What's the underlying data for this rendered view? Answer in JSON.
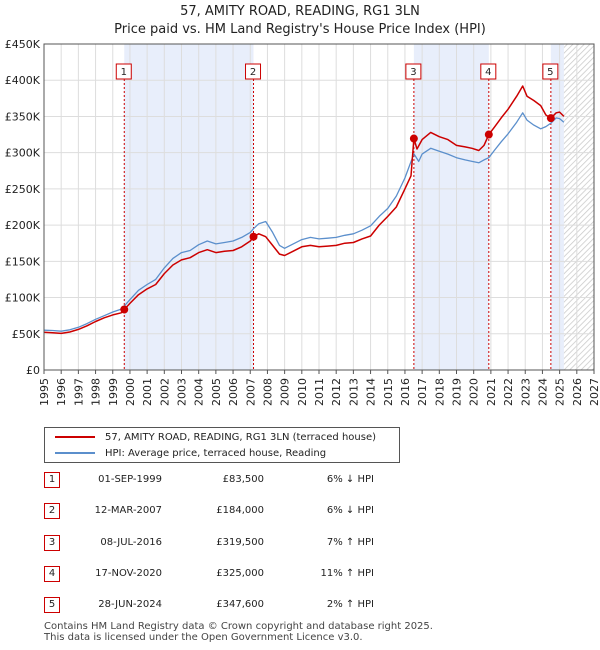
{
  "title_line1": "57, AMITY ROAD, READING, RG1 3LN",
  "title_line2": "Price paid vs. HM Land Registry's House Price Index (HPI)",
  "chart_data": {
    "type": "line",
    "x_range": [
      1995,
      2027
    ],
    "ylim": [
      0,
      450000
    ],
    "y_ticks": [
      {
        "value": 0,
        "label": "£0"
      },
      {
        "value": 50000,
        "label": "£50K"
      },
      {
        "value": 100000,
        "label": "£100K"
      },
      {
        "value": 150000,
        "label": "£150K"
      },
      {
        "value": 200000,
        "label": "£200K"
      },
      {
        "value": 250000,
        "label": "£250K"
      },
      {
        "value": 300000,
        "label": "£300K"
      },
      {
        "value": 350000,
        "label": "£350K"
      },
      {
        "value": 400000,
        "label": "£400K"
      },
      {
        "value": 450000,
        "label": "£450K"
      }
    ],
    "x_ticks": [
      "1995",
      "1996",
      "1997",
      "1998",
      "1999",
      "2000",
      "2001",
      "2002",
      "2003",
      "2004",
      "2005",
      "2006",
      "2007",
      "2008",
      "2009",
      "2010",
      "2011",
      "2012",
      "2013",
      "2014",
      "2015",
      "2016",
      "2017",
      "2018",
      "2019",
      "2020",
      "2021",
      "2022",
      "2023",
      "2024",
      "2025",
      "2026",
      "2027"
    ],
    "grid": true,
    "forecast_from": 2025.25,
    "shaded_periods": [
      [
        1999.67,
        2007.19
      ],
      [
        2016.52,
        2020.88
      ],
      [
        2024.49,
        2025.25
      ]
    ],
    "series": [
      {
        "name": "57, AMITY ROAD, READING, RG1 3LN (terraced house)",
        "color": "#cc0000",
        "points": [
          [
            1995.0,
            52000
          ],
          [
            1995.5,
            51500
          ],
          [
            1996.0,
            50500
          ],
          [
            1996.5,
            52500
          ],
          [
            1997.0,
            56000
          ],
          [
            1997.5,
            61000
          ],
          [
            1998.0,
            67000
          ],
          [
            1998.5,
            72000
          ],
          [
            1999.0,
            76000
          ],
          [
            1999.5,
            79000
          ],
          [
            1999.67,
            83500
          ],
          [
            2000.0,
            92000
          ],
          [
            2000.5,
            104000
          ],
          [
            2001.0,
            112000
          ],
          [
            2001.5,
            118000
          ],
          [
            2002.0,
            133000
          ],
          [
            2002.5,
            145000
          ],
          [
            2003.0,
            152000
          ],
          [
            2003.5,
            155000
          ],
          [
            2004.0,
            162000
          ],
          [
            2004.5,
            166000
          ],
          [
            2005.0,
            162000
          ],
          [
            2005.5,
            164000
          ],
          [
            2006.0,
            165000
          ],
          [
            2006.5,
            170000
          ],
          [
            2007.0,
            178000
          ],
          [
            2007.19,
            184000
          ],
          [
            2007.5,
            188000
          ],
          [
            2007.9,
            184000
          ],
          [
            2008.3,
            172000
          ],
          [
            2008.7,
            160000
          ],
          [
            2009.0,
            158000
          ],
          [
            2009.5,
            164000
          ],
          [
            2010.0,
            170000
          ],
          [
            2010.5,
            172000
          ],
          [
            2011.0,
            170000
          ],
          [
            2011.5,
            171000
          ],
          [
            2012.0,
            172000
          ],
          [
            2012.5,
            175000
          ],
          [
            2013.0,
            176000
          ],
          [
            2013.5,
            181000
          ],
          [
            2014.0,
            185000
          ],
          [
            2014.5,
            200000
          ],
          [
            2015.0,
            212000
          ],
          [
            2015.5,
            225000
          ],
          [
            2016.0,
            250000
          ],
          [
            2016.35,
            268000
          ],
          [
            2016.52,
            319500
          ],
          [
            2016.7,
            305000
          ],
          [
            2017.0,
            318000
          ],
          [
            2017.5,
            328000
          ],
          [
            2018.0,
            322000
          ],
          [
            2018.5,
            318000
          ],
          [
            2019.0,
            310000
          ],
          [
            2019.5,
            308000
          ],
          [
            2019.9,
            306000
          ],
          [
            2020.3,
            303000
          ],
          [
            2020.6,
            310000
          ],
          [
            2020.88,
            325000
          ],
          [
            2021.2,
            335000
          ],
          [
            2021.6,
            348000
          ],
          [
            2022.0,
            360000
          ],
          [
            2022.5,
            378000
          ],
          [
            2022.85,
            392000
          ],
          [
            2023.1,
            378000
          ],
          [
            2023.5,
            372000
          ],
          [
            2023.9,
            365000
          ],
          [
            2024.2,
            352000
          ],
          [
            2024.49,
            347600
          ],
          [
            2024.8,
            355000
          ],
          [
            2025.0,
            356000
          ],
          [
            2025.25,
            350000
          ]
        ]
      },
      {
        "name": "HPI: Average price, terraced house, Reading",
        "color": "#5b8fcc",
        "points": [
          [
            1995.0,
            55000
          ],
          [
            1995.5,
            54500
          ],
          [
            1996.0,
            53500
          ],
          [
            1996.5,
            55500
          ],
          [
            1997.0,
            59000
          ],
          [
            1997.5,
            64000
          ],
          [
            1998.0,
            70000
          ],
          [
            1998.5,
            75000
          ],
          [
            1999.0,
            80000
          ],
          [
            1999.5,
            84000
          ],
          [
            1999.67,
            88500
          ],
          [
            2000.0,
            97000
          ],
          [
            2000.5,
            110000
          ],
          [
            2001.0,
            118000
          ],
          [
            2001.5,
            125000
          ],
          [
            2002.0,
            141000
          ],
          [
            2002.5,
            154000
          ],
          [
            2003.0,
            162000
          ],
          [
            2003.5,
            165000
          ],
          [
            2004.0,
            173000
          ],
          [
            2004.5,
            178000
          ],
          [
            2005.0,
            174000
          ],
          [
            2005.5,
            176000
          ],
          [
            2006.0,
            178000
          ],
          [
            2006.5,
            183000
          ],
          [
            2007.0,
            190000
          ],
          [
            2007.19,
            195000
          ],
          [
            2007.5,
            202000
          ],
          [
            2007.9,
            205000
          ],
          [
            2008.3,
            190000
          ],
          [
            2008.7,
            172000
          ],
          [
            2009.0,
            168000
          ],
          [
            2009.5,
            174000
          ],
          [
            2010.0,
            180000
          ],
          [
            2010.5,
            183000
          ],
          [
            2011.0,
            181000
          ],
          [
            2011.5,
            182000
          ],
          [
            2012.0,
            183000
          ],
          [
            2012.5,
            186000
          ],
          [
            2013.0,
            188000
          ],
          [
            2013.5,
            193000
          ],
          [
            2014.0,
            199000
          ],
          [
            2014.5,
            212000
          ],
          [
            2015.0,
            223000
          ],
          [
            2015.5,
            240000
          ],
          [
            2016.0,
            265000
          ],
          [
            2016.52,
            298500
          ],
          [
            2016.8,
            288000
          ],
          [
            2017.0,
            298000
          ],
          [
            2017.5,
            306000
          ],
          [
            2018.0,
            302000
          ],
          [
            2018.5,
            298000
          ],
          [
            2019.0,
            293000
          ],
          [
            2019.5,
            290000
          ],
          [
            2019.9,
            288000
          ],
          [
            2020.3,
            286000
          ],
          [
            2020.6,
            290000
          ],
          [
            2020.88,
            293000
          ],
          [
            2021.2,
            303000
          ],
          [
            2021.6,
            315000
          ],
          [
            2022.0,
            326000
          ],
          [
            2022.5,
            342000
          ],
          [
            2022.85,
            355000
          ],
          [
            2023.1,
            345000
          ],
          [
            2023.5,
            338000
          ],
          [
            2023.9,
            333000
          ],
          [
            2024.2,
            336000
          ],
          [
            2024.49,
            340800
          ],
          [
            2024.8,
            348000
          ],
          [
            2025.0,
            347000
          ],
          [
            2025.25,
            342000
          ]
        ]
      }
    ],
    "sales": [
      {
        "num": "1",
        "x": 1999.67,
        "y": 83500
      },
      {
        "num": "2",
        "x": 2007.19,
        "y": 184000
      },
      {
        "num": "3",
        "x": 2016.52,
        "y": 319500
      },
      {
        "num": "4",
        "x": 2020.88,
        "y": 325000
      },
      {
        "num": "5",
        "x": 2024.49,
        "y": 347600
      }
    ]
  },
  "legend": {
    "property_label": "57, AMITY ROAD, READING, RG1 3LN (terraced house)",
    "hpi_label": "HPI: Average price, terraced house, Reading"
  },
  "transactions": [
    {
      "num": "1",
      "date": "01-SEP-1999",
      "price": "£83,500",
      "hpi": "6% ↓ HPI"
    },
    {
      "num": "2",
      "date": "12-MAR-2007",
      "price": "£184,000",
      "hpi": "6% ↓ HPI"
    },
    {
      "num": "3",
      "date": "08-JUL-2016",
      "price": "£319,500",
      "hpi": "7% ↑ HPI"
    },
    {
      "num": "4",
      "date": "17-NOV-2020",
      "price": "£325,000",
      "hpi": "11% ↑ HPI"
    },
    {
      "num": "5",
      "date": "28-JUN-2024",
      "price": "£347,600",
      "hpi": "2% ↑ HPI"
    }
  ],
  "footer": {
    "line1": "Contains HM Land Registry data © Crown copyright and database right 2025.",
    "line2": "This data is licensed under the Open Government Licence v3.0."
  },
  "colors": {
    "property": "#cc0000",
    "hpi": "#5b8fcc",
    "shade": "#e8eefb"
  }
}
